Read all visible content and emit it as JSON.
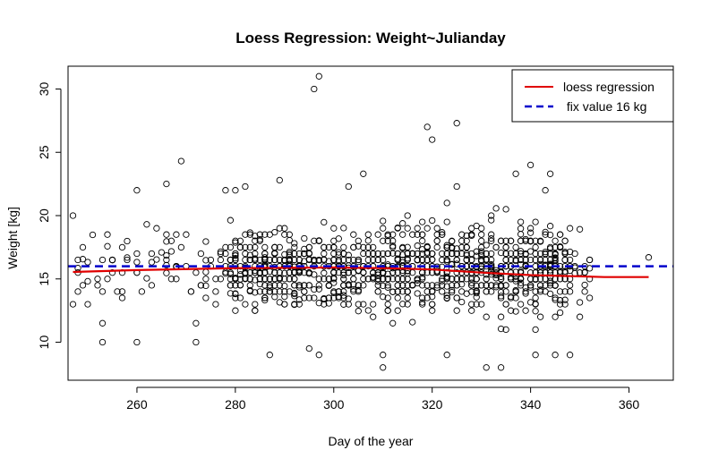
{
  "chart_data": {
    "type": "scatter",
    "title": "Loess Regression: Weight~Julianday",
    "xlabel": "Day of the year",
    "ylabel": "Weight [kg]",
    "xlim": [
      246,
      369
    ],
    "ylim": [
      7.0,
      31.8
    ],
    "x_ticks": [
      260,
      280,
      300,
      320,
      340,
      360
    ],
    "y_ticks": [
      10,
      15,
      20,
      25,
      30
    ],
    "x_range": [
      247,
      364
    ],
    "grid": false,
    "legend_position": "top-right",
    "legend": [
      {
        "label": "loess regression",
        "color": "#e00000",
        "style": "solid"
      },
      {
        "label": " fix value 16 kg",
        "color": "#0000cc",
        "style": "dashed"
      }
    ],
    "scatter_outliers": [
      {
        "x": 297,
        "y": 31.0
      },
      {
        "x": 296,
        "y": 30.0
      },
      {
        "x": 325,
        "y": 27.3
      },
      {
        "x": 319,
        "y": 27.0
      },
      {
        "x": 320,
        "y": 26.0
      },
      {
        "x": 269,
        "y": 24.3
      },
      {
        "x": 340,
        "y": 24.0
      },
      {
        "x": 344,
        "y": 23.3
      },
      {
        "x": 337,
        "y": 23.3
      },
      {
        "x": 306,
        "y": 23.3
      },
      {
        "x": 289,
        "y": 22.8
      },
      {
        "x": 266,
        "y": 22.5
      },
      {
        "x": 325,
        "y": 22.3
      },
      {
        "x": 282,
        "y": 22.3
      },
      {
        "x": 303,
        "y": 22.3
      },
      {
        "x": 260,
        "y": 22.0
      },
      {
        "x": 278,
        "y": 22.0
      },
      {
        "x": 280,
        "y": 22.0
      },
      {
        "x": 343,
        "y": 22.0
      },
      {
        "x": 247,
        "y": 20.0
      },
      {
        "x": 247,
        "y": 13.0
      },
      {
        "x": 364,
        "y": 16.7
      },
      {
        "x": 253,
        "y": 10.0
      },
      {
        "x": 260,
        "y": 10.0
      },
      {
        "x": 272,
        "y": 10.0
      },
      {
        "x": 287,
        "y": 9.0
      },
      {
        "x": 295,
        "y": 9.5
      },
      {
        "x": 297,
        "y": 9.0
      },
      {
        "x": 310,
        "y": 9.0
      },
      {
        "x": 310,
        "y": 8.0
      },
      {
        "x": 323,
        "y": 9.0
      },
      {
        "x": 331,
        "y": 8.0
      },
      {
        "x": 334,
        "y": 8.0
      },
      {
        "x": 341,
        "y": 9.0
      },
      {
        "x": 345,
        "y": 9.0
      },
      {
        "x": 348,
        "y": 9.0
      }
    ],
    "scatter_bulk": {
      "description_n": 1200,
      "x_range": [
        248,
        352
      ],
      "y_range": [
        10,
        21.5
      ],
      "y_center": 15.8,
      "y_levels": [
        10,
        11,
        11.5,
        12,
        12.5,
        13,
        13.5,
        14,
        14.5,
        15,
        15.5,
        16,
        16.5,
        17,
        17.5,
        18,
        18.5,
        19,
        19.5,
        20,
        20.5,
        21,
        21.5
      ]
    },
    "series": [
      {
        "name": "loess regression",
        "color": "#e00000",
        "x": [
          247,
          260,
          280,
          300,
          310,
          320,
          330,
          340,
          350,
          355,
          364
        ],
        "y": [
          15.55,
          15.7,
          15.85,
          15.9,
          15.85,
          15.75,
          15.5,
          15.3,
          15.2,
          15.15,
          15.15
        ]
      },
      {
        "name": " fix value 16 kg",
        "color": "#0000cc",
        "y_constant": 16
      }
    ]
  }
}
